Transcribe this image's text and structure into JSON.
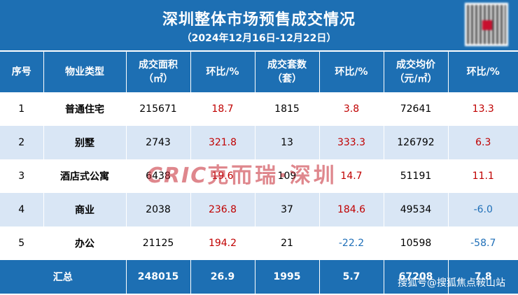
{
  "header": {
    "title": "深圳整体市场预售成交情况",
    "subtitle": "（2024年12月16日-12月22日）"
  },
  "columns": [
    {
      "line1": "序号",
      "line2": ""
    },
    {
      "line1": "物业类型",
      "line2": ""
    },
    {
      "line1": "成交面积",
      "line2": "（㎡）"
    },
    {
      "line1": "环比/%",
      "line2": ""
    },
    {
      "line1": "成交套数",
      "line2": "（套）"
    },
    {
      "line1": "环比/%",
      "line2": ""
    },
    {
      "line1": "成交均价",
      "line2": "（元/㎡）"
    },
    {
      "line1": "环比/%",
      "line2": ""
    }
  ],
  "rows": [
    {
      "no": "1",
      "type": "普通住宅",
      "area": "215671",
      "area_chg": "18.7",
      "units": "1815",
      "units_chg": "3.8",
      "price": "72641",
      "price_chg": "13.3"
    },
    {
      "no": "2",
      "type": "别墅",
      "area": "2743",
      "area_chg": "321.8",
      "units": "13",
      "units_chg": "333.3",
      "price": "126792",
      "price_chg": "6.3"
    },
    {
      "no": "3",
      "type": "酒店式公寓",
      "area": "6438",
      "area_chg": "19.6",
      "units": "109",
      "units_chg": "14.7",
      "price": "51191",
      "price_chg": "11.1"
    },
    {
      "no": "4",
      "type": "商业",
      "area": "2038",
      "area_chg": "236.8",
      "units": "37",
      "units_chg": "184.6",
      "price": "49534",
      "price_chg": "-6.0"
    },
    {
      "no": "5",
      "type": "办公",
      "area": "21125",
      "area_chg": "194.2",
      "units": "21",
      "units_chg": "-22.2",
      "price": "10598",
      "price_chg": "-58.7"
    }
  ],
  "total": {
    "label": "汇总",
    "area": "248015",
    "area_chg": "26.9",
    "units": "1995",
    "units_chg": "5.7",
    "price": "67208",
    "price_chg": "7.8"
  },
  "watermark": {
    "brand": "CRIC",
    "cn": "克而瑞·深圳"
  },
  "credit": "搜狐号@搜狐焦点鞍山站",
  "colors": {
    "header_blue": "#1d6fb3",
    "band_blue": "#d9e6f5",
    "positive": "#c00000",
    "negative": "#1f6fb8"
  }
}
